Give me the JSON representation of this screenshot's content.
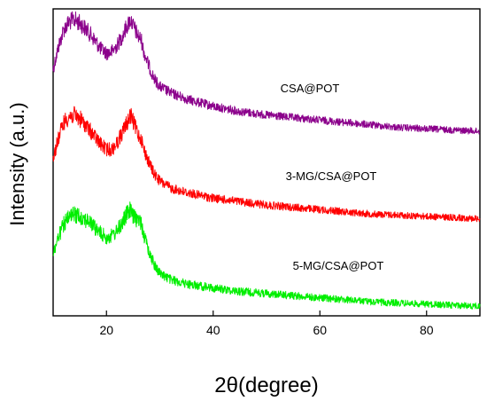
{
  "chart_data": {
    "type": "line",
    "title": "",
    "xlabel": "2θ(degree)",
    "ylabel": "Intensity (a.u.)",
    "xlim": [
      10,
      90
    ],
    "xticks": [
      20,
      40,
      60,
      80
    ],
    "y_tick_labels": "none",
    "grid": false,
    "legend": "inline labels near each curve",
    "series": [
      {
        "name": "CSA@POT",
        "color": "#8B008B",
        "peaks": [
          13.5,
          24.5
        ],
        "x": [
          10,
          11,
          12,
          13,
          14,
          15,
          16,
          17,
          18,
          19,
          20,
          21,
          22,
          23,
          24,
          24.5,
          25,
          26,
          26.5,
          27,
          28,
          29,
          30,
          32,
          35,
          40,
          45,
          50,
          55,
          60,
          65,
          70,
          75,
          80,
          85,
          90
        ],
        "y": [
          0.6,
          0.78,
          0.92,
          0.98,
          1.0,
          0.97,
          0.93,
          0.88,
          0.82,
          0.76,
          0.73,
          0.74,
          0.79,
          0.87,
          0.96,
          1.0,
          0.95,
          0.86,
          0.84,
          0.74,
          0.62,
          0.52,
          0.46,
          0.41,
          0.36,
          0.3,
          0.26,
          0.23,
          0.21,
          0.19,
          0.17,
          0.15,
          0.13,
          0.12,
          0.11,
          0.1
        ]
      },
      {
        "name": "3-MG/CSA@POT",
        "color": "#FF0000",
        "peaks": [
          13.5,
          24.5
        ],
        "x": [
          10,
          11,
          12,
          13,
          14,
          15,
          16,
          17,
          18,
          19,
          20,
          21,
          22,
          23,
          24,
          24.5,
          25,
          26,
          26.5,
          27,
          28,
          29,
          30,
          32,
          35,
          40,
          45,
          50,
          55,
          60,
          65,
          70,
          75,
          80,
          85,
          90
        ],
        "y": [
          0.62,
          0.8,
          0.94,
          0.99,
          1.0,
          0.97,
          0.92,
          0.86,
          0.8,
          0.74,
          0.7,
          0.7,
          0.76,
          0.85,
          0.95,
          1.0,
          0.94,
          0.83,
          0.8,
          0.7,
          0.58,
          0.48,
          0.42,
          0.36,
          0.32,
          0.27,
          0.24,
          0.21,
          0.19,
          0.17,
          0.15,
          0.13,
          0.12,
          0.11,
          0.1,
          0.09
        ]
      },
      {
        "name": "5-MG/CSA@POT",
        "color": "#00EE00",
        "peaks": [
          14,
          24.5,
          26
        ],
        "x": [
          10,
          11,
          12,
          13,
          14,
          15,
          16,
          17,
          18,
          19,
          20,
          21,
          22,
          23,
          24,
          24.5,
          25,
          26,
          26.5,
          27,
          28,
          29,
          30,
          32,
          35,
          40,
          45,
          50,
          55,
          60,
          65,
          70,
          75,
          80,
          85,
          90
        ],
        "y": [
          0.58,
          0.74,
          0.86,
          0.92,
          0.95,
          0.94,
          0.91,
          0.87,
          0.82,
          0.77,
          0.74,
          0.75,
          0.8,
          0.88,
          0.97,
          1.0,
          0.93,
          0.9,
          0.88,
          0.76,
          0.6,
          0.48,
          0.4,
          0.34,
          0.3,
          0.26,
          0.23,
          0.21,
          0.19,
          0.17,
          0.15,
          0.13,
          0.12,
          0.11,
          0.1,
          0.09
        ]
      }
    ]
  }
}
